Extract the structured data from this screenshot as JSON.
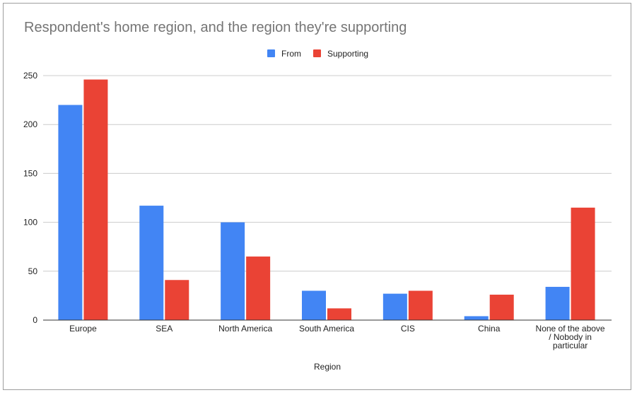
{
  "chart_data": {
    "type": "bar",
    "title": "Respondent's home region, and the region they're supporting",
    "xlabel": "Region",
    "ylabel": "",
    "ylim": [
      0,
      250
    ],
    "yticks": [
      0,
      50,
      100,
      150,
      200,
      250
    ],
    "grid": true,
    "legend_position": "top",
    "categories": [
      "Europe",
      "SEA",
      "North America",
      "South America",
      "CIS",
      "China",
      "None of the above / Nobody in particular"
    ],
    "category_lines": [
      [
        "Europe"
      ],
      [
        "SEA"
      ],
      [
        "North America"
      ],
      [
        "South America"
      ],
      [
        "CIS"
      ],
      [
        "China"
      ],
      [
        "None of the above",
        "/ Nobody in",
        "particular"
      ]
    ],
    "series": [
      {
        "name": "From",
        "color": "#4285f4",
        "values": [
          220,
          117,
          100,
          30,
          27,
          4,
          34
        ]
      },
      {
        "name": "Supporting",
        "color": "#ea4335",
        "values": [
          246,
          41,
          65,
          12,
          30,
          26,
          115
        ]
      }
    ]
  }
}
